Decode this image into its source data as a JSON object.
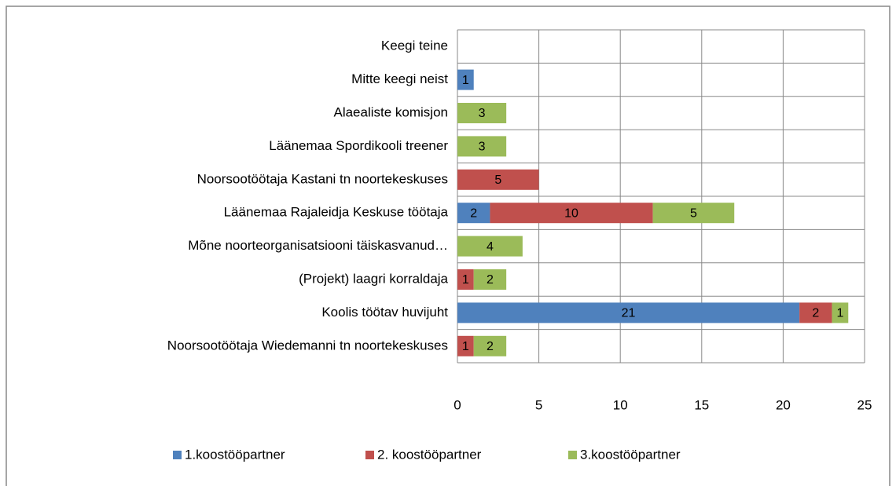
{
  "chart_data": {
    "type": "stacked-bar-horizontal",
    "categories": [
      "Keegi teine",
      "Mitte keegi neist",
      "Alaealiste komisjon",
      "Läänemaa Spordikooli treener",
      "Noorsootöötaja Kastani tn noortekeskuses",
      "Läänemaa Rajaleidja Keskuse töötaja",
      "Mõne noorteorganisatsiooni täiskasvanud…",
      "(Projekt) laagri korraldaja",
      "Koolis töötav huvijuht",
      "Noorsootöötaja Wiedemanni tn noortekeskuses"
    ],
    "series": [
      {
        "name": "1.koostööpartner",
        "color": "#4f81bd",
        "values": [
          null,
          1,
          null,
          null,
          null,
          2,
          null,
          null,
          21,
          null
        ]
      },
      {
        "name": "2. koostööpartner",
        "color": "#c0504d",
        "values": [
          null,
          null,
          null,
          null,
          5,
          10,
          null,
          1,
          2,
          1
        ]
      },
      {
        "name": "3.koostööpartner",
        "color": "#9bbb59",
        "values": [
          null,
          null,
          3,
          3,
          null,
          5,
          4,
          2,
          1,
          2
        ]
      }
    ],
    "xlim": [
      0,
      25
    ],
    "xticks": [
      0,
      5,
      10,
      15,
      20,
      25
    ],
    "grid": true,
    "legend": "bottom"
  }
}
